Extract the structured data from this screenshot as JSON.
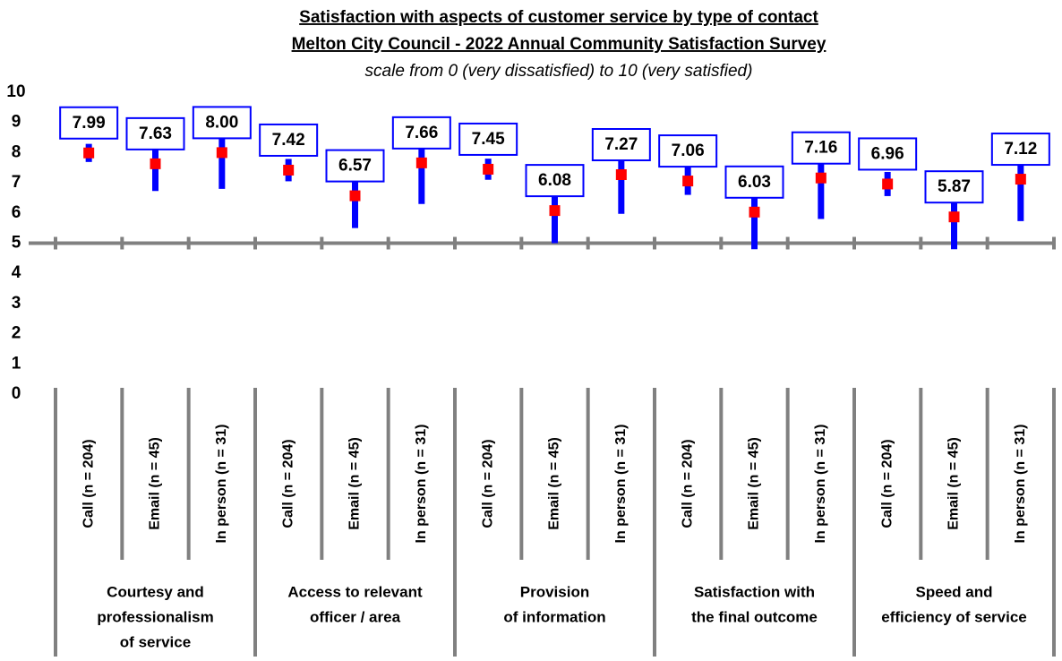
{
  "chart_data": {
    "type": "errorbar",
    "title": "Satisfaction with aspects of customer service by type of contact",
    "subtitle": "Melton City Council - 2022 Annual Community Satisfaction Survey",
    "note": "scale from 0 (very dissatisfied) to 10 (very satisfied)",
    "groups": [
      {
        "label": [
          "Courtesy and",
          "professionalism",
          "of service"
        ],
        "categories": [
          "Call (n = 204)",
          "Email (n = 45)",
          "In person (n = 31)"
        ]
      },
      {
        "label": [
          "Access to relevant",
          "officer / area"
        ],
        "categories": [
          "Call (n = 204)",
          "Email (n = 45)",
          "In person (n = 31)"
        ]
      },
      {
        "label": [
          "Provision",
          "of information"
        ],
        "categories": [
          "Call (n = 204)",
          "Email (n = 45)",
          "In person (n = 31)"
        ]
      },
      {
        "label": [
          "Satisfaction with",
          "the final outcome"
        ],
        "categories": [
          "Call (n = 204)",
          "Email (n = 45)",
          "In person (n = 31)"
        ]
      },
      {
        "label": [
          "Speed and",
          "efficiency of service"
        ],
        "categories": [
          "Call (n = 204)",
          "Email (n = 45)",
          "In person (n = 31)"
        ]
      }
    ],
    "series": [
      {
        "color": "#ff0000",
        "error_color": "#0000ff",
        "values": [
          7.99,
          7.63,
          8.0,
          7.42,
          6.57,
          7.66,
          7.45,
          6.08,
          7.27,
          7.06,
          6.03,
          7.16,
          6.96,
          5.87,
          7.12
        ],
        "value_labels": [
          "7.99",
          "7.63",
          "8.00",
          "7.42",
          "6.57",
          "7.66",
          "7.45",
          "6.08",
          "7.27",
          "7.06",
          "6.03",
          "7.16",
          "6.96",
          "5.87",
          "7.12"
        ],
        "errors": [
          0.3,
          0.9,
          1.2,
          0.37,
          1.07,
          1.36,
          0.35,
          1.08,
          1.3,
          0.46,
          1.23,
          1.36,
          0.4,
          1.07,
          1.39
        ]
      }
    ],
    "reference_line": 5,
    "ylim": [
      0,
      10
    ],
    "yticks": [
      0,
      1,
      2,
      3,
      4,
      5,
      6,
      7,
      8,
      9,
      10
    ],
    "grid": false
  }
}
